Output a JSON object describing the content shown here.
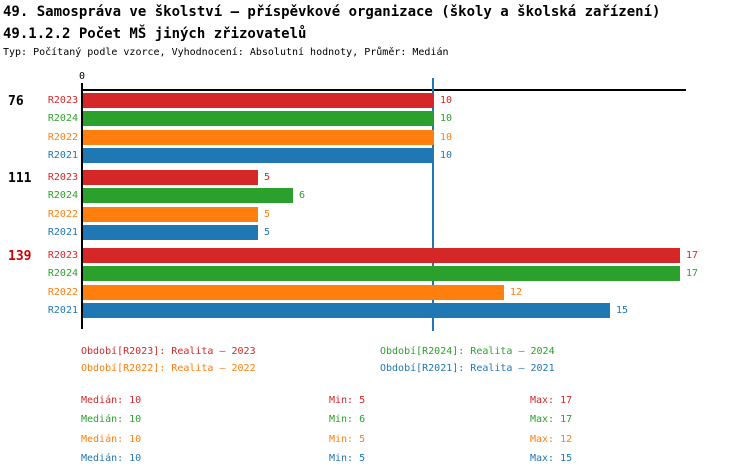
{
  "header": {
    "title_line1": "49. Samospráva ve školství – příspěvkové organizace (školy a školská zařízení)",
    "title_line2": "49.1.2.2 Počet MŠ jiných zřizovatelů",
    "subtitle": "Typ: Počítaný podle vzorce, Vyhodnocení: Absolutní hodnoty, Průměr: Medián"
  },
  "colors": {
    "R2023": "#d62728",
    "R2024": "#2ca02c",
    "R2022": "#ff7f0e",
    "R2021": "#1f77b4",
    "highlight_group_label": "#cc0000",
    "normal_group_label": "#000000",
    "axis": "#000000",
    "median_line": "#1f77b4"
  },
  "chart_data": {
    "type": "bar",
    "orientation": "horizontal",
    "value_axis": {
      "zero_label": "0",
      "min": 0,
      "max_visible": 17.2
    },
    "median_reference_value": 10,
    "series_order": [
      "R2023",
      "R2024",
      "R2022",
      "R2021"
    ],
    "groups": [
      {
        "id": "76",
        "highlighted": false,
        "values": {
          "R2023": 10,
          "R2024": 10,
          "R2022": 10,
          "R2021": 10
        }
      },
      {
        "id": "111",
        "highlighted": false,
        "values": {
          "R2023": 5,
          "R2024": 6,
          "R2022": 5,
          "R2021": 5
        }
      },
      {
        "id": "139",
        "highlighted": true,
        "values": {
          "R2023": 17,
          "R2024": 17,
          "R2022": 12,
          "R2021": 15
        }
      }
    ]
  },
  "legend": [
    {
      "series": "R2023",
      "label": "Období[R2023]: Realita – 2023",
      "row": 0,
      "col": 0
    },
    {
      "series": "R2024",
      "label": "Období[R2024]: Realita – 2024",
      "row": 0,
      "col": 1
    },
    {
      "series": "R2022",
      "label": "Období[R2022]: Realita – 2022",
      "row": 1,
      "col": 0
    },
    {
      "series": "R2021",
      "label": "Období[R2021]: Realita – 2021",
      "row": 1,
      "col": 1
    }
  ],
  "stats": {
    "median_label": "Medián",
    "min_label": "Min",
    "max_label": "Max",
    "rows": [
      {
        "series": "R2023",
        "median": 10,
        "min": 5,
        "max": 17
      },
      {
        "series": "R2024",
        "median": 10,
        "min": 6,
        "max": 17
      },
      {
        "series": "R2022",
        "median": 10,
        "min": 5,
        "max": 12
      },
      {
        "series": "R2021",
        "median": 10,
        "min": 5,
        "max": 15
      }
    ]
  }
}
